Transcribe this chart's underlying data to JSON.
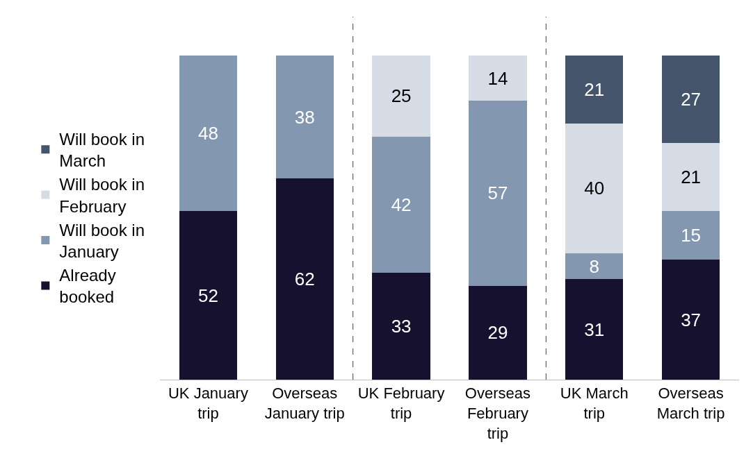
{
  "chart_data": {
    "type": "bar",
    "stacked": true,
    "data_labels": true,
    "legend": "left",
    "tick_labels": "x",
    "ylim": [
      0,
      100
    ],
    "categories": [
      "UK January trip",
      "Overseas January trip",
      "UK February trip",
      "Overseas February trip",
      "UK March trip",
      "Overseas March trip"
    ],
    "series": [
      {
        "name": "Already booked",
        "color": "#16112e",
        "values": [
          52,
          62,
          33,
          29,
          31,
          37
        ]
      },
      {
        "name": "Will book in January",
        "color": "#8497b0",
        "values": [
          48,
          38,
          42,
          57,
          8,
          15
        ]
      },
      {
        "name": "Will book in February",
        "color": "#d6dce5",
        "values": [
          null,
          null,
          25,
          14,
          40,
          21
        ]
      },
      {
        "name": "Will book in March",
        "color": "#44546a",
        "values": [
          null,
          null,
          null,
          null,
          21,
          27
        ]
      }
    ]
  }
}
